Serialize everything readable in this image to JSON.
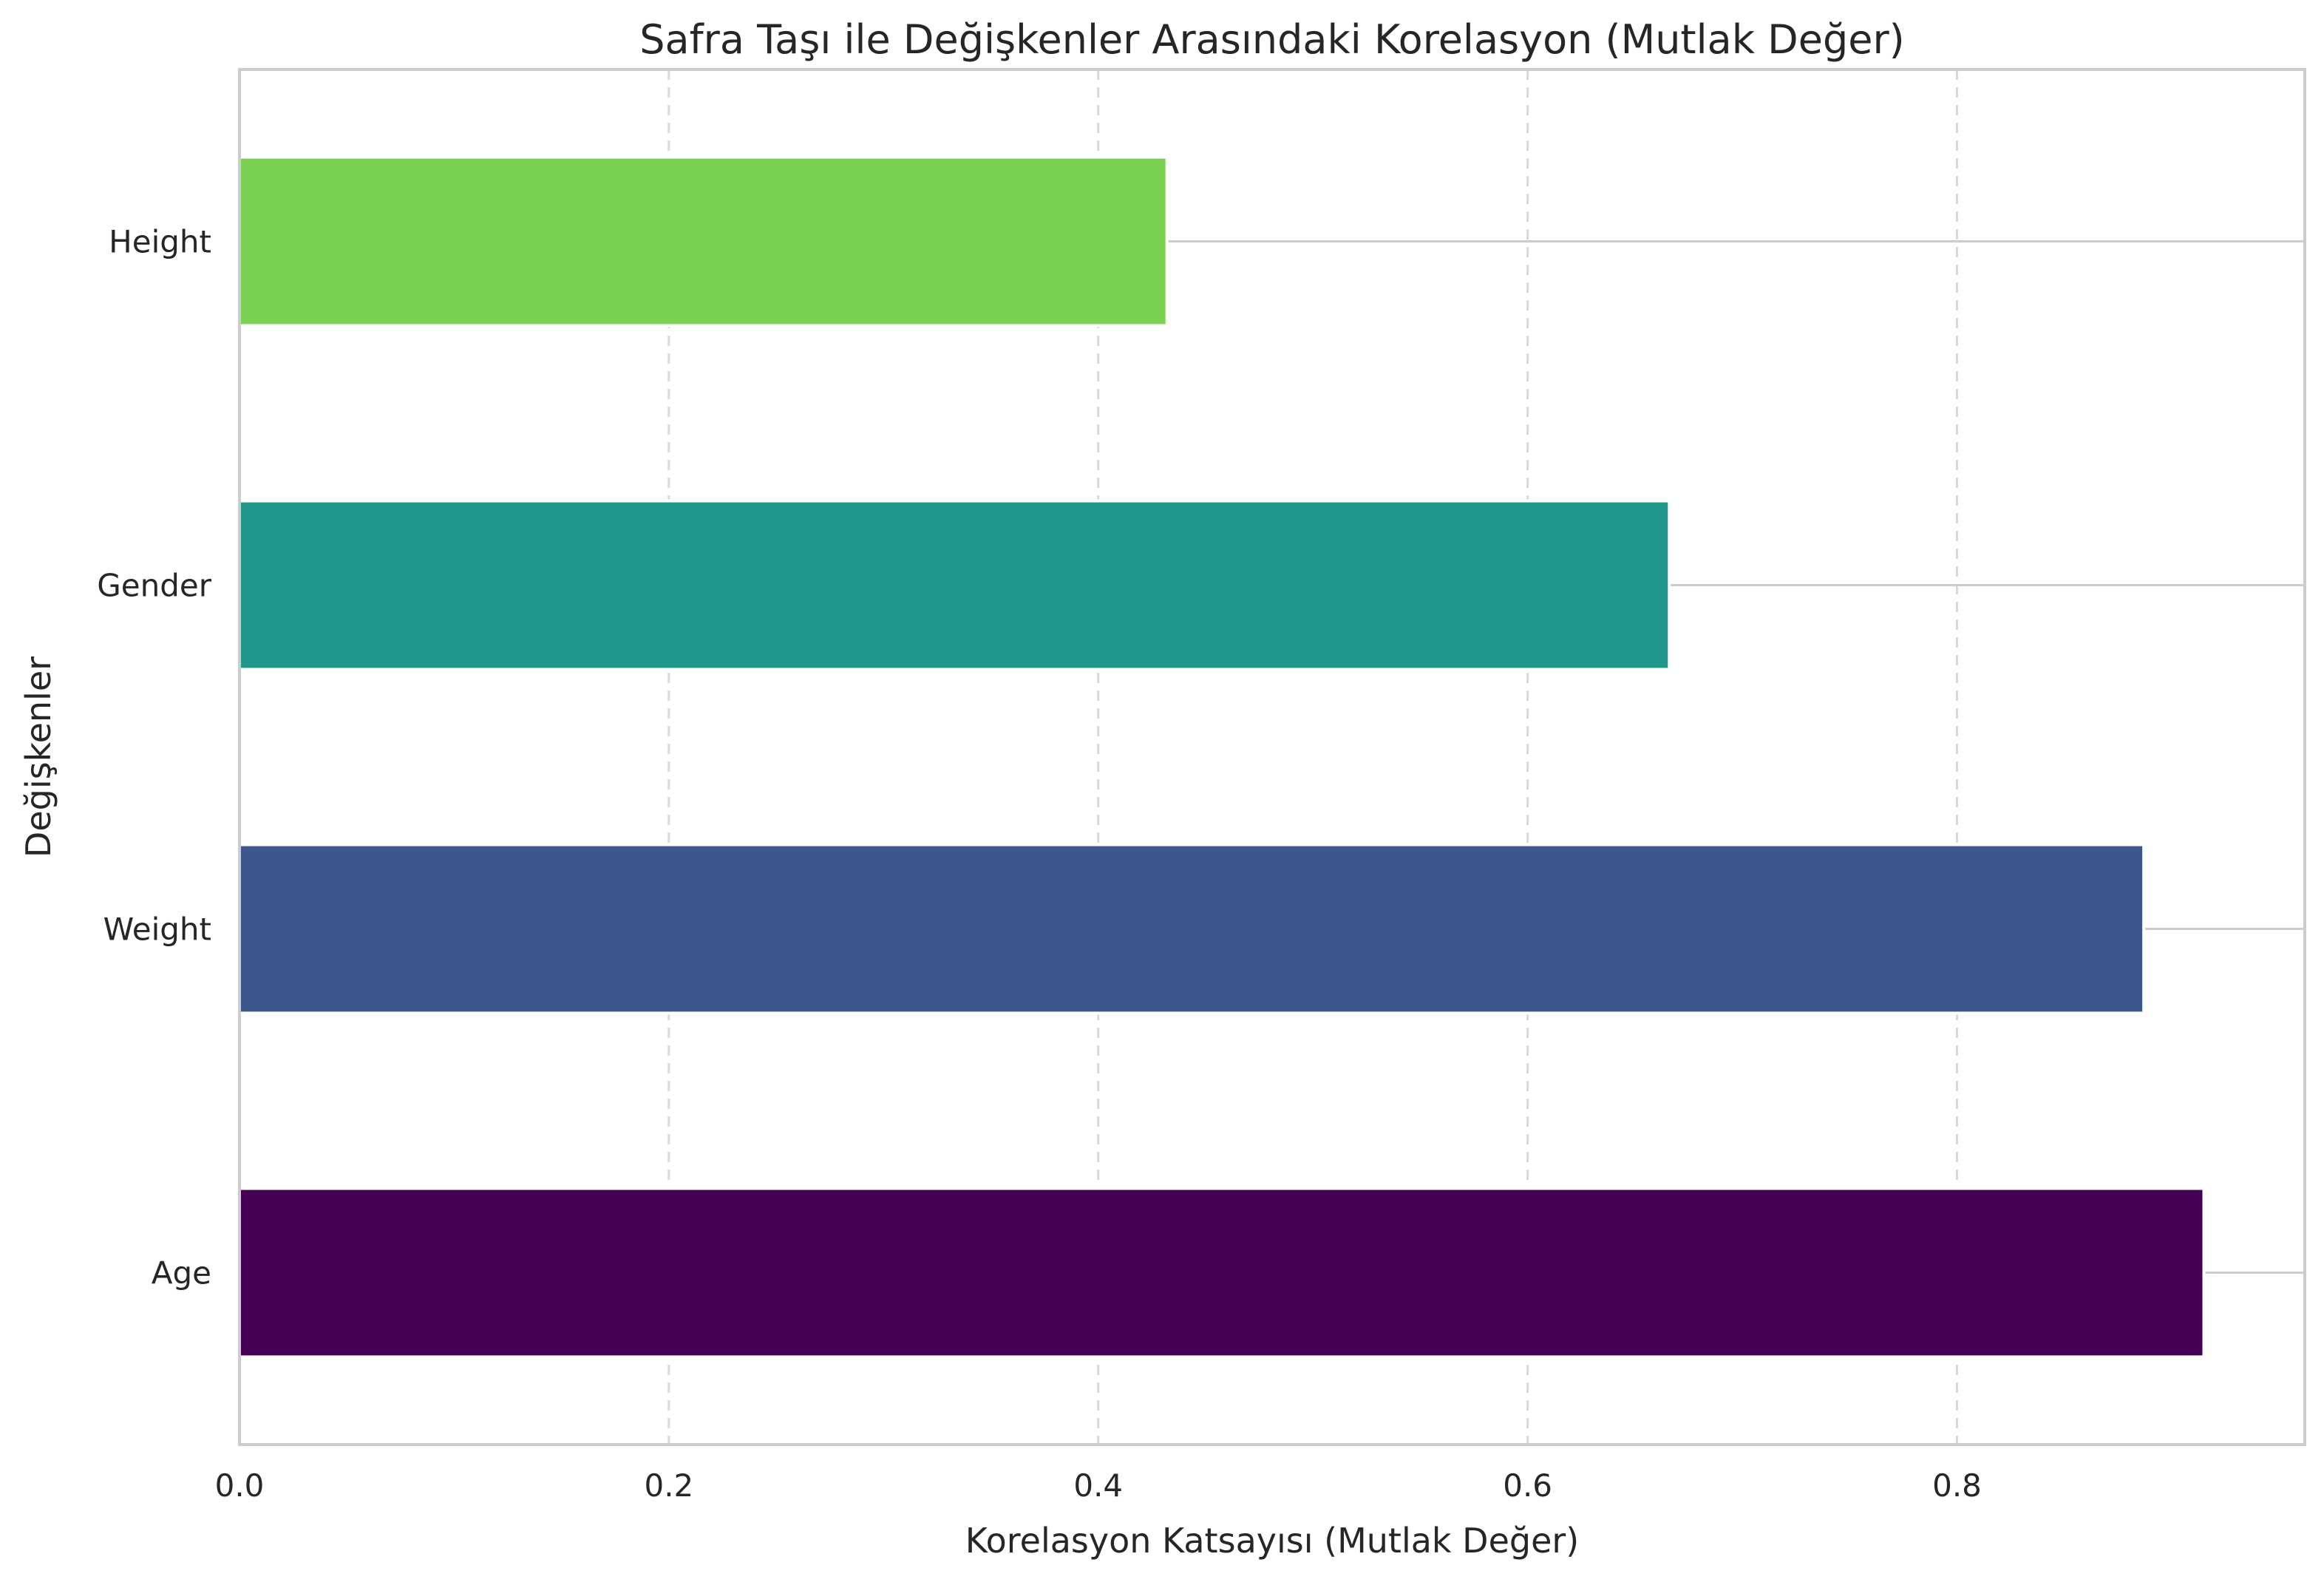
{
  "chart_data": {
    "type": "bar",
    "orientation": "horizontal",
    "title": "Safra Taşı ile Değişkenler Arasındaki Korelasyon (Mutlak Değer)",
    "xlabel": "Korelasyon Katsayısı (Mutlak Değer)",
    "ylabel": "Değişkenler",
    "categories": [
      "Age",
      "Weight",
      "Gender",
      "Height"
    ],
    "values": [
      0.915,
      0.887,
      0.666,
      0.432
    ],
    "colors": [
      "#440154",
      "#3b578b",
      "#21988c",
      "#7ad151"
    ],
    "xlim": [
      0,
      0.962
    ],
    "xticks": [
      0.0,
      0.2,
      0.4,
      0.6,
      0.8
    ],
    "xtick_labels": [
      "0.0",
      "0.2",
      "0.4",
      "0.6",
      "0.8"
    ],
    "grid": true
  }
}
